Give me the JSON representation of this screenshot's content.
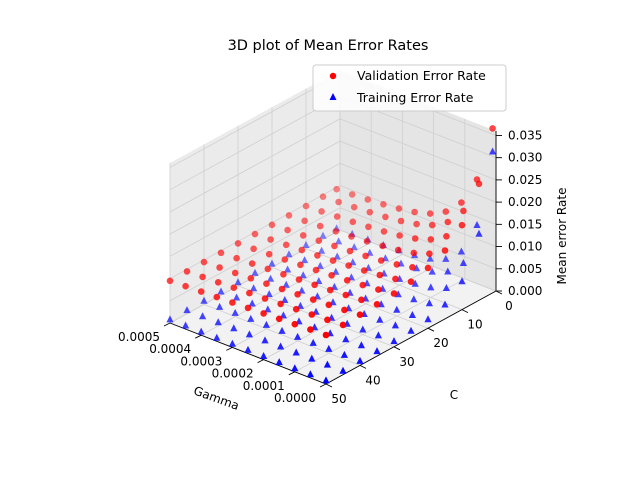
{
  "chart_data": {
    "type": "scatter",
    "projection": "3d",
    "title": "3D plot of Mean Error Rates",
    "xlabel": "Gamma",
    "ylabel": "C",
    "zlabel": "Mean error Rate",
    "x_ticks": [
      "0.0000",
      "0.0001",
      "0.0002",
      "0.0003",
      "0.0004",
      "0.0005"
    ],
    "y_ticks": [
      "0",
      "10",
      "20",
      "30",
      "40",
      "50"
    ],
    "z_ticks": [
      "0.000",
      "0.005",
      "0.010",
      "0.015",
      "0.020",
      "0.025",
      "0.030",
      "0.035"
    ],
    "xlim": [
      0,
      0.0005
    ],
    "ylim": [
      0,
      50
    ],
    "zlim": [
      0,
      0.036
    ],
    "grid": true,
    "legend_position": "top-right",
    "gamma_values": [
      0.0,
      5e-05,
      0.0001,
      0.00015,
      0.0002,
      0.00025,
      0.0003,
      0.00035,
      0.0004,
      0.00045,
      0.0005
    ],
    "c_values": [
      1,
      5,
      10,
      15,
      20,
      25,
      30,
      35,
      40,
      45,
      50
    ],
    "series": [
      {
        "name": "Validation Error Rate",
        "marker": "circle",
        "color": "#ff0000",
        "model": "smooth surface: about 0.034 near gamma 0 and C 1, falling to about 0.009–0.012 as gamma and C grow",
        "error_at_low_gamma_low_C": 0.034,
        "typical_error": 0.012
      },
      {
        "name": "Training Error Rate",
        "marker": "triangle",
        "color": "#0000ff",
        "model": "about 0.031 near gamma 0 and C 1, falling toward about 0.001 at larger gamma and C",
        "error_at_low_gamma_low_C": 0.031,
        "typical_error": 0.001
      }
    ]
  }
}
